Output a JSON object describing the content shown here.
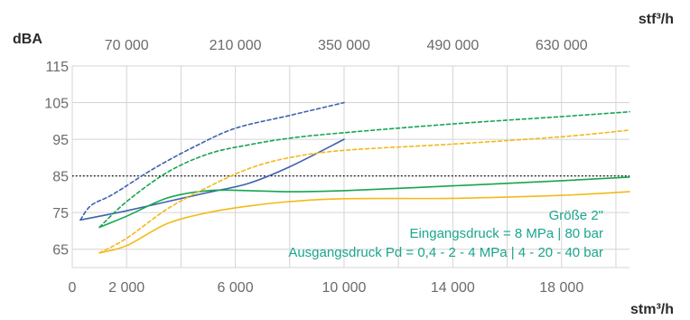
{
  "chart_data": {
    "type": "line",
    "y_unit": "dBA",
    "x_bottom_unit": "stm³/h",
    "x_top_unit": "stf³/h",
    "xlim": [
      0,
      20500
    ],
    "ylim": [
      60,
      115
    ],
    "x_ticks_bottom": [
      {
        "value": 0,
        "label": "0"
      },
      {
        "value": 2000,
        "label": "2 000"
      },
      {
        "value": 6000,
        "label": "6 000"
      },
      {
        "value": 10000,
        "label": "10 000"
      },
      {
        "value": 14000,
        "label": "14 000"
      },
      {
        "value": 18000,
        "label": "18 000"
      }
    ],
    "x_ticks_top": [
      {
        "value": 2000,
        "label": "70 000"
      },
      {
        "value": 6000,
        "label": "210 000"
      },
      {
        "value": 10000,
        "label": "350 000"
      },
      {
        "value": 14000,
        "label": "490 000"
      },
      {
        "value": 18000,
        "label": "630 000"
      }
    ],
    "y_ticks": [
      65,
      75,
      85,
      95,
      105,
      115
    ],
    "grid": true,
    "reference_line": {
      "y": 85,
      "style": "dotted",
      "color": "#000000"
    },
    "series": [
      {
        "color": "#3d62b0",
        "dash": true,
        "points": [
          [
            300,
            73
          ],
          [
            700,
            77
          ],
          [
            1500,
            80
          ],
          [
            3000,
            87
          ],
          [
            4500,
            93
          ],
          [
            6000,
            98
          ],
          [
            8000,
            101.5
          ],
          [
            10000,
            105
          ]
        ]
      },
      {
        "color": "#3d62b0",
        "dash": false,
        "points": [
          [
            300,
            73
          ],
          [
            1000,
            74
          ],
          [
            2000,
            75.5
          ],
          [
            3500,
            78
          ],
          [
            5000,
            80.5
          ],
          [
            6500,
            83
          ],
          [
            8000,
            87.5
          ],
          [
            10000,
            95
          ]
        ]
      },
      {
        "color": "#17a550",
        "dash": true,
        "points": [
          [
            1000,
            71
          ],
          [
            2000,
            78
          ],
          [
            3500,
            86
          ],
          [
            5000,
            91
          ],
          [
            6500,
            93.5
          ],
          [
            8000,
            95.3
          ],
          [
            10000,
            96.8
          ],
          [
            14000,
            99.2
          ],
          [
            18000,
            101.2
          ],
          [
            20500,
            102.5
          ]
        ]
      },
      {
        "color": "#17a550",
        "dash": false,
        "points": [
          [
            1000,
            71
          ],
          [
            2000,
            74
          ],
          [
            3500,
            79
          ],
          [
            5000,
            81
          ],
          [
            6500,
            81
          ],
          [
            8000,
            80.7
          ],
          [
            10000,
            81
          ],
          [
            14000,
            82.3
          ],
          [
            18000,
            83.7
          ],
          [
            20500,
            84.7
          ]
        ]
      },
      {
        "color": "#f4b919",
        "dash": true,
        "points": [
          [
            1000,
            64
          ],
          [
            2000,
            68
          ],
          [
            3500,
            76
          ],
          [
            5000,
            82
          ],
          [
            6500,
            87
          ],
          [
            8000,
            90
          ],
          [
            10000,
            92
          ],
          [
            14000,
            93.7
          ],
          [
            18000,
            95.7
          ],
          [
            20500,
            97.5
          ]
        ]
      },
      {
        "color": "#f4b919",
        "dash": false,
        "points": [
          [
            1000,
            64
          ],
          [
            2000,
            66
          ],
          [
            3500,
            72
          ],
          [
            5000,
            75
          ],
          [
            6500,
            76.8
          ],
          [
            8000,
            78
          ],
          [
            10000,
            78.8
          ],
          [
            14000,
            78.9
          ],
          [
            18000,
            79.7
          ],
          [
            20500,
            80.7
          ]
        ]
      }
    ],
    "annotations": [
      {
        "text": "Größe 2\"",
        "color": "#1aa58e"
      },
      {
        "text": "Eingangsdruck = 8 MPa | 80 bar",
        "color": "#1aa58e"
      },
      {
        "text": "Ausgangsdruck Pd = 0,4 - 2 - 4 MPa | 4 - 20 - 40 bar",
        "color": "#1aa58e"
      }
    ]
  }
}
